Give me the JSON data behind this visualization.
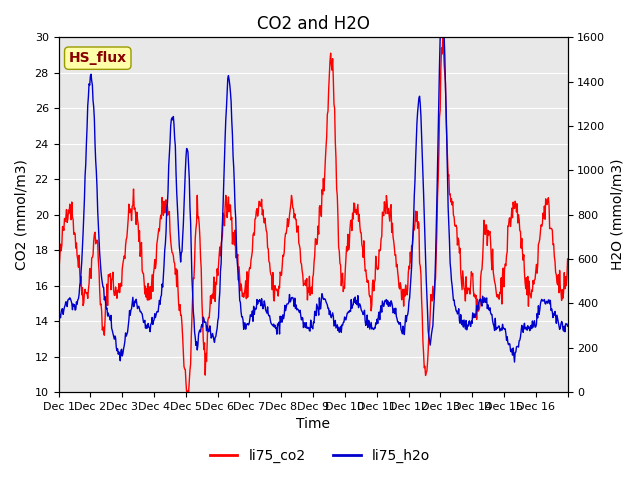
{
  "title": "CO2 and H2O",
  "xlabel": "Time",
  "ylabel_left": "CO2 (mmol/m3)",
  "ylabel_right": "H2O (mmol/m3)",
  "co2_color": "#FF0000",
  "h2o_color": "#0000CC",
  "co2_label": "li75_co2",
  "h2o_label": "li75_h2o",
  "ylim_left": [
    10,
    30
  ],
  "ylim_right": [
    0,
    1600
  ],
  "plot_bg_color": "#E8E8E8",
  "hs_flux_label": "HS_flux",
  "hs_flux_box_color": "#FFFFAA",
  "hs_flux_text_color": "#880000",
  "x_tick_positions": [
    0,
    1,
    2,
    3,
    4,
    5,
    6,
    7,
    8,
    9,
    10,
    11,
    12,
    13,
    14,
    15,
    16
  ],
  "x_tick_labels": [
    "Dec 1",
    "Dec 2",
    "Dec 3",
    "Dec 4",
    "Dec 5",
    "Dec 6",
    "Dec 7",
    "Dec 8",
    "Dec 9",
    "Dec 10",
    "Dec 11",
    "Dec 12",
    "Dec 13",
    "Dec 14",
    "Dec 15",
    "Dec 16",
    ""
  ],
  "n_days": 16,
  "points_per_day": 48,
  "title_fontsize": 12,
  "label_fontsize": 10,
  "tick_fontsize": 8,
  "legend_fontsize": 10,
  "line_width": 1.0
}
